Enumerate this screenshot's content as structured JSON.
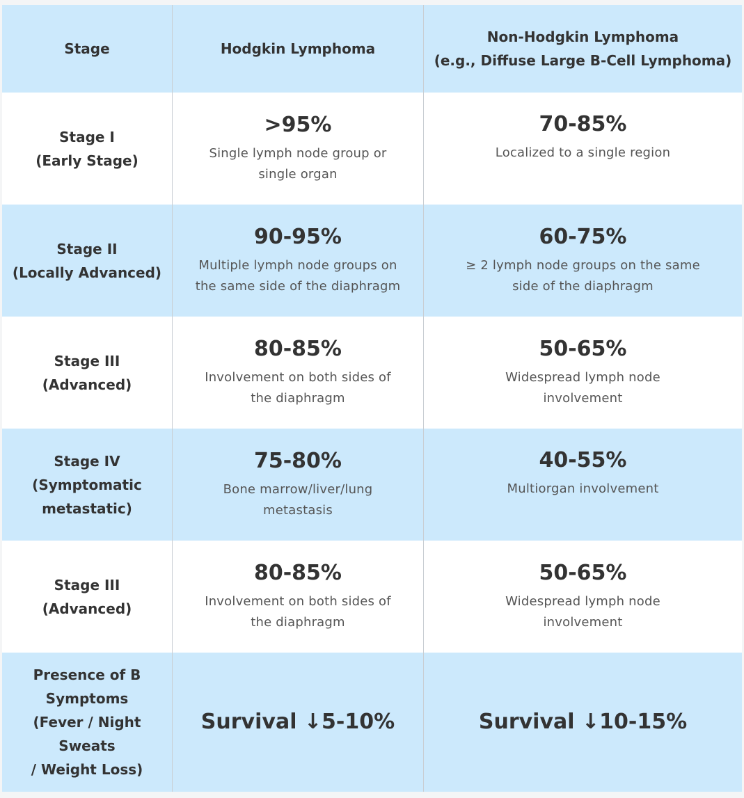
{
  "header": {
    "stage": "Stage",
    "hodgkin": "Hodgkin Lymphoma",
    "non_hodgkin_line1": "Non-Hodgkin Lymphoma",
    "non_hodgkin_line2": "(e.g., Diffuse Large B-Cell Lymphoma)"
  },
  "rows": [
    {
      "stage_line1": "Stage I",
      "stage_line2": "(Early Stage)",
      "stage_line3": "",
      "hodgkin_rate": ">95%",
      "hodgkin_desc_line1": "Single lymph node group or",
      "hodgkin_desc_line2": "single organ",
      "nhl_rate": "70-85%",
      "nhl_desc_line1": "Localized to a single region",
      "nhl_desc_line2": ""
    },
    {
      "stage_line1": "Stage II",
      "stage_line2": "(Locally Advanced)",
      "stage_line3": "",
      "hodgkin_rate": "90-95%",
      "hodgkin_desc_line1": "Multiple lymph node groups on",
      "hodgkin_desc_line2": "the same side of the diaphragm",
      "nhl_rate": "60-75%",
      "nhl_desc_line1": "≥ 2 lymph node groups on the same",
      "nhl_desc_line2": "side of the diaphragm"
    },
    {
      "stage_line1": "Stage III",
      "stage_line2": "(Advanced)",
      "stage_line3": "",
      "hodgkin_rate": "80-85%",
      "hodgkin_desc_line1": "Involvement on both sides of",
      "hodgkin_desc_line2": "the diaphragm",
      "nhl_rate": "50-65%",
      "nhl_desc_line1": "Widespread lymph node",
      "nhl_desc_line2": "involvement"
    },
    {
      "stage_line1": "Stage IV",
      "stage_line2": "(Symptomatic",
      "stage_line3": "metastatic)",
      "hodgkin_rate": "75-80%",
      "hodgkin_desc_line1": "Bone marrow/liver/lung",
      "hodgkin_desc_line2": "metastasis",
      "nhl_rate": "40-55%",
      "nhl_desc_line1": "Multiorgan involvement",
      "nhl_desc_line2": ""
    },
    {
      "stage_line1": "Stage III",
      "stage_line2": "(Advanced)",
      "stage_line3": "",
      "hodgkin_rate": "80-85%",
      "hodgkin_desc_line1": "Involvement on both sides of",
      "hodgkin_desc_line2": "the diaphragm",
      "nhl_rate": "50-65%",
      "nhl_desc_line1": "Widespread lymph node",
      "nhl_desc_line2": "involvement"
    }
  ],
  "b_symptoms": {
    "label_line1": "Presence of B",
    "label_line2": "Symptoms",
    "label_line3": "(Fever / Night Sweats",
    "label_line4": "/ Weight Loss)",
    "hodgkin": "Survival ↓5-10%",
    "nhl": "Survival ↓10-15%"
  },
  "colors": {
    "blue_row": "#cce9fc",
    "white_row": "#ffffff",
    "divider": "#c9ced3"
  }
}
